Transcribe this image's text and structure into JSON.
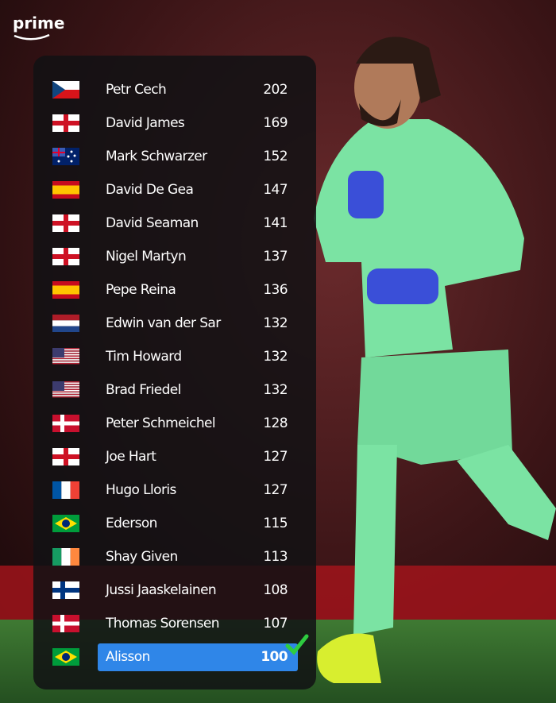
{
  "brand": "prime",
  "table": {
    "rows": [
      [
        "Petr Cech",
        202
      ],
      [
        "David James",
        169
      ],
      [
        "Mark Schwarzer",
        152
      ],
      [
        "David De Gea",
        147
      ],
      [
        "David Seaman",
        141
      ],
      [
        "Nigel Martyn",
        137
      ],
      [
        "Pepe Reina",
        136
      ],
      [
        "Edwin van der Sar",
        132
      ],
      [
        "Tim Howard",
        132
      ],
      [
        "Brad Friedel",
        132
      ],
      [
        "Peter Schmeichel",
        128
      ],
      [
        "Joe Hart",
        127
      ],
      [
        "Hugo Lloris",
        127
      ],
      [
        "Ederson",
        115
      ],
      [
        "Shay Given",
        113
      ],
      [
        "Jussi Jaaskelainen",
        108
      ],
      [
        "Thomas Sorensen",
        107
      ],
      [
        "Alisson",
        100
      ]
    ]
  }
}
